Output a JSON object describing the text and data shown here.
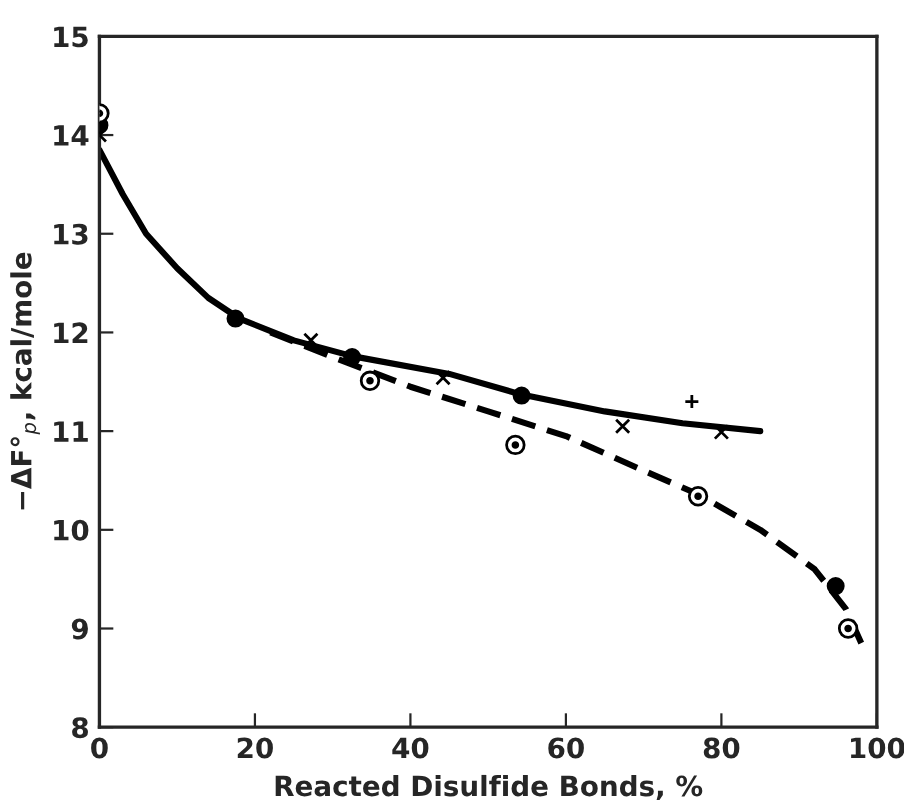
{
  "chart_data": {
    "type": "scatter",
    "xlabel": "Reacted Disulfide Bonds, %",
    "ylabel": "−ΔF°$_{p}$, kcal/mole",
    "xlim": [
      0,
      100
    ],
    "ylim": [
      8,
      15
    ],
    "xticks": [
      0,
      20,
      40,
      60,
      80,
      100
    ],
    "yticks": [
      8,
      9,
      10,
      11,
      12,
      13,
      14,
      15
    ],
    "grid": false,
    "legend": false,
    "series": [
      {
        "type": "line",
        "color": "#000000",
        "line_style": "solid",
        "marker": "none",
        "x": [
          0,
          3,
          6,
          10,
          14,
          18,
          25,
          32.5,
          45,
          54.3,
          65,
          75,
          85
        ],
        "values": [
          13.85,
          13.4,
          13.0,
          12.65,
          12.35,
          12.14,
          11.92,
          11.76,
          11.58,
          11.37,
          11.2,
          11.08,
          11.0
        ]
      },
      {
        "type": "line",
        "color": "#000000",
        "line_style": "dashed",
        "marker": "none",
        "x": [
          22,
          30,
          40,
          50,
          60,
          70,
          77,
          85,
          92,
          96,
          98
        ],
        "values": [
          12.0,
          11.75,
          11.45,
          11.2,
          10.95,
          10.6,
          10.36,
          10.0,
          9.6,
          9.2,
          8.85
        ]
      },
      {
        "color": "#000000",
        "marker": "circle",
        "x": [
          0,
          17.5,
          32.5,
          54.3,
          94.7
        ],
        "values": [
          14.1,
          12.14,
          11.75,
          11.36,
          9.43
        ]
      },
      {
        "color": "#000000",
        "marker": "cross",
        "x": [
          0,
          27.2,
          44.2,
          67.3,
          80
        ],
        "values": [
          14.0,
          11.92,
          11.54,
          11.05,
          10.99
        ]
      },
      {
        "color": "#000000",
        "marker": "plus",
        "x": [
          76.2
        ],
        "values": [
          11.3
        ]
      },
      {
        "color": "#000000",
        "marker": "circled",
        "x": [
          0,
          34.8,
          53.5,
          77,
          96.3
        ],
        "values": [
          14.22,
          11.51,
          10.86,
          10.34,
          9.0
        ]
      }
    ]
  }
}
